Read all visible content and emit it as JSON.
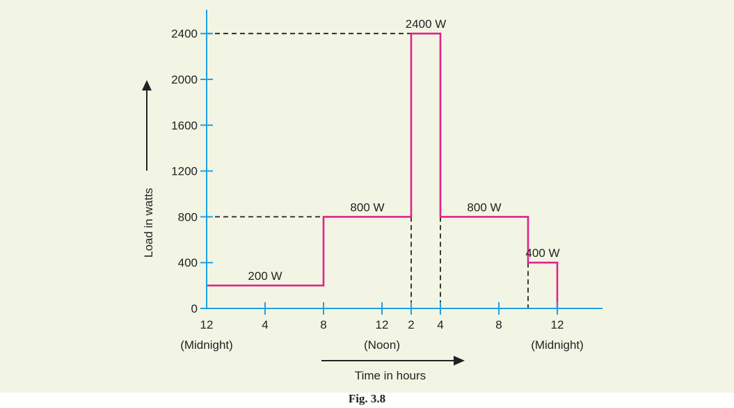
{
  "chart_data": {
    "type": "line",
    "step": true,
    "xlabel": "Time in hours",
    "ylabel": "Load in watts",
    "caption": "Fig. 3.8",
    "ylim": [
      0,
      2400
    ],
    "xlim": [
      0,
      24
    ],
    "y_ticks": [
      0,
      400,
      800,
      1200,
      1600,
      2000,
      2400
    ],
    "x_ticks": [
      {
        "x": 0,
        "label": "12",
        "sub": "(Midnight)"
      },
      {
        "x": 4,
        "label": "4",
        "sub": ""
      },
      {
        "x": 8,
        "label": "8",
        "sub": ""
      },
      {
        "x": 12,
        "label": "12",
        "sub": "(Noon)"
      },
      {
        "x": 14,
        "label": "2",
        "sub": ""
      },
      {
        "x": 16,
        "label": "4",
        "sub": ""
      },
      {
        "x": 20,
        "label": "8",
        "sub": ""
      },
      {
        "x": 24,
        "label": "12",
        "sub": "(Midnight)"
      }
    ],
    "segments": [
      {
        "start": 0,
        "end": 8,
        "load": 200,
        "label": "200 W"
      },
      {
        "start": 8,
        "end": 14,
        "load": 800,
        "label": "800 W"
      },
      {
        "start": 14,
        "end": 16,
        "load": 2400,
        "label": "2400 W"
      },
      {
        "start": 16,
        "end": 22,
        "load": 800,
        "label": "800 W"
      },
      {
        "start": 22,
        "end": 24,
        "load": 400,
        "label": "400 W"
      }
    ],
    "colors": {
      "axis": "#1ea0e6",
      "line": "#e0238a",
      "guide": "#222222"
    }
  }
}
